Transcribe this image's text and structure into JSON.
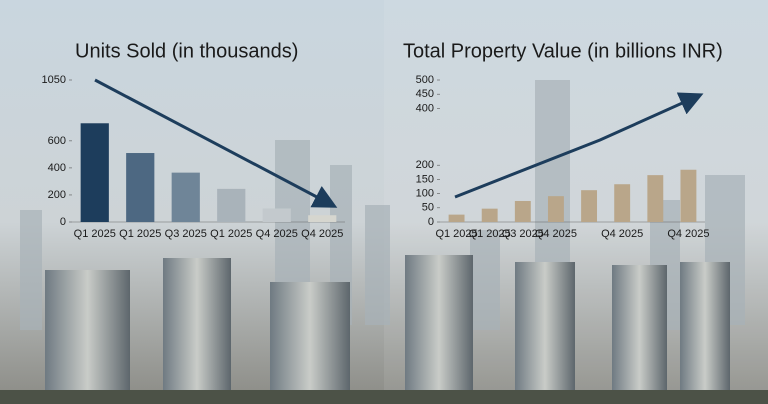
{
  "chart_data": [
    {
      "type": "bar",
      "title": "Units Sold (in thousands)",
      "categories": [
        "Q1 2025",
        "Q1 2025",
        "Q3 2025",
        "Q1 2025",
        "Q4 2025",
        "Q4 2025"
      ],
      "values": [
        730,
        510,
        365,
        245,
        100,
        50
      ],
      "colors": [
        "#1d3d5c",
        "#4d6882",
        "#6f8598",
        "#a9b3ba",
        "#c3c9cd",
        "#d6d6cf"
      ],
      "ylim": [
        0,
        1050
      ],
      "yticks": [
        0,
        200,
        400,
        600,
        1050
      ]
    },
    {
      "type": "bar",
      "title": "Total Property Value (in billions INR)",
      "categories": [
        "Q1 2025",
        "Q1 2025",
        "Q3 2025",
        "Q4 2025",
        null,
        "Q4 2025",
        null,
        "Q4 2025"
      ],
      "values": [
        26,
        47,
        74,
        91,
        112,
        133,
        165,
        184
      ],
      "color": "#b9a68a",
      "ylim": [
        0,
        500
      ],
      "yticks": [
        0,
        50,
        100,
        150,
        200,
        400,
        450,
        500
      ]
    }
  ]
}
